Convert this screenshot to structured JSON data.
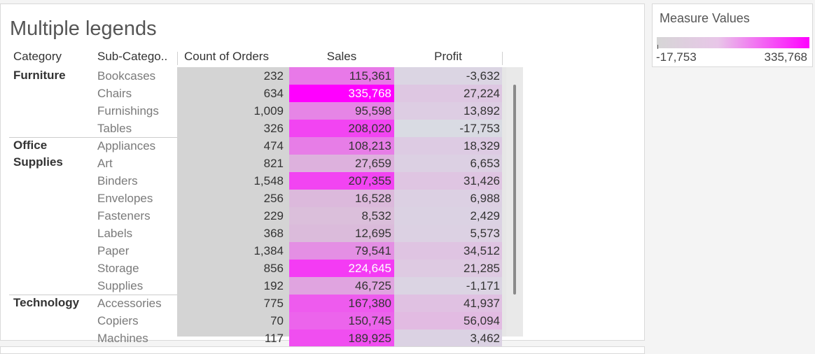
{
  "title": "Multiple legends",
  "headers": {
    "category": "Category",
    "subcategory": "Sub-Catego..",
    "count": "Count of Orders",
    "sales": "Sales",
    "profit": "Profit"
  },
  "legend": {
    "title": "Measure Values",
    "min_label": "-17,753",
    "max_label": "335,768",
    "min_color": "#d6d6d6",
    "max_color": "#ff00ff"
  },
  "colors": {
    "sales_ramp": [
      "#d6d6d6",
      "#ff00ff"
    ],
    "profit_ramp": [
      "#d9dbe3",
      "#e2b9e2"
    ],
    "count_fill": "#d4d4d4"
  },
  "chart_data": {
    "type": "table",
    "title": "Multiple legends",
    "columns": [
      "Category",
      "Sub-Catego..",
      "Count of Orders",
      "Sales",
      "Profit"
    ],
    "categories": [
      {
        "name": "Furniture",
        "rows": [
          {
            "subcat": "Bookcases",
            "count": "232",
            "sales": "115,361",
            "profit": "-3,632",
            "sales_value": 115361,
            "profit_value": -3632
          },
          {
            "subcat": "Chairs",
            "count": "634",
            "sales": "335,768",
            "profit": "27,224",
            "sales_value": 335768,
            "profit_value": 27224
          },
          {
            "subcat": "Furnishings",
            "count": "1,009",
            "sales": "95,598",
            "profit": "13,892",
            "sales_value": 95598,
            "profit_value": 13892
          },
          {
            "subcat": "Tables",
            "count": "326",
            "sales": "208,020",
            "profit": "-17,753",
            "sales_value": 208020,
            "profit_value": -17753
          }
        ]
      },
      {
        "name": "Office\nSupplies",
        "rows": [
          {
            "subcat": "Appliances",
            "count": "474",
            "sales": "108,213",
            "profit": "18,329",
            "sales_value": 108213,
            "profit_value": 18329
          },
          {
            "subcat": "Art",
            "count": "821",
            "sales": "27,659",
            "profit": "6,653",
            "sales_value": 27659,
            "profit_value": 6653
          },
          {
            "subcat": "Binders",
            "count": "1,548",
            "sales": "207,355",
            "profit": "31,426",
            "sales_value": 207355,
            "profit_value": 31426
          },
          {
            "subcat": "Envelopes",
            "count": "256",
            "sales": "16,528",
            "profit": "6,988",
            "sales_value": 16528,
            "profit_value": 6988
          },
          {
            "subcat": "Fasteners",
            "count": "229",
            "sales": "8,532",
            "profit": "2,429",
            "sales_value": 8532,
            "profit_value": 2429
          },
          {
            "subcat": "Labels",
            "count": "368",
            "sales": "12,695",
            "profit": "5,573",
            "sales_value": 12695,
            "profit_value": 5573
          },
          {
            "subcat": "Paper",
            "count": "1,384",
            "sales": "79,541",
            "profit": "34,512",
            "sales_value": 79541,
            "profit_value": 34512
          },
          {
            "subcat": "Storage",
            "count": "856",
            "sales": "224,645",
            "profit": "21,285",
            "sales_value": 224645,
            "profit_value": 21285
          },
          {
            "subcat": "Supplies",
            "count": "192",
            "sales": "46,725",
            "profit": "-1,171",
            "sales_value": 46725,
            "profit_value": -1171
          }
        ]
      },
      {
        "name": "Technology",
        "rows": [
          {
            "subcat": "Accessories",
            "count": "775",
            "sales": "167,380",
            "profit": "41,937",
            "sales_value": 167380,
            "profit_value": 41937
          },
          {
            "subcat": "Copiers",
            "count": "70",
            "sales": "150,745",
            "profit": "56,094",
            "sales_value": 150745,
            "profit_value": 56094
          },
          {
            "subcat": "Machines",
            "count": "117",
            "sales": "189,925",
            "profit": "3,462",
            "sales_value": 189925,
            "profit_value": 3462
          }
        ]
      }
    ],
    "color_range": [
      -17753,
      335768
    ]
  }
}
